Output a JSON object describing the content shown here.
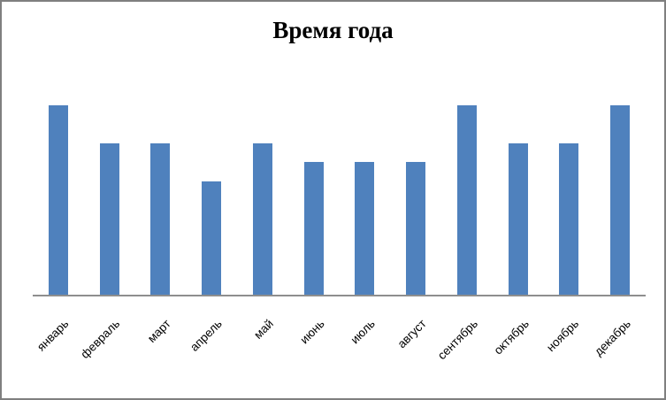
{
  "window": {
    "background_color": "#FFFFFF",
    "frame_border_color": "#7F7F7F"
  },
  "chart_data": {
    "type": "bar",
    "title": "Время года",
    "categories": [
      "январь",
      "февраль",
      "март",
      "апрель",
      "май",
      "июнь",
      "июль",
      "август",
      "сентябрь",
      "октябрь",
      "ноябрь",
      "декабрь"
    ],
    "values": [
      5,
      4,
      4,
      3,
      4,
      3.5,
      3.5,
      3.5,
      5,
      4,
      4,
      5
    ],
    "xlabel": "",
    "ylabel": "",
    "ylim": [
      0,
      5
    ],
    "grid": false,
    "legend": false,
    "x_tick_rotation_deg": 45,
    "bar_color": "#4F81BD",
    "axis_color": "#8E8E8E",
    "title_color": "#000000",
    "tick_label_color": "#000000"
  }
}
